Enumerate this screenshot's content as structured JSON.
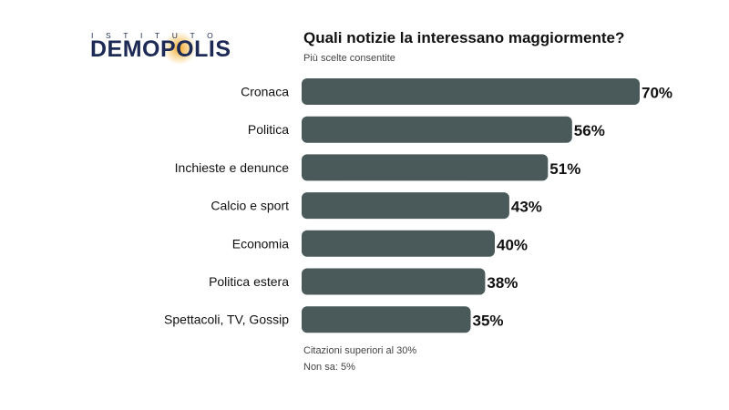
{
  "logo": {
    "top": "ISTITUTO",
    "main": "DEMOPOLIS"
  },
  "header": {
    "title": "Quali notizie la interessano maggiormente?",
    "subtitle": "Più scelte consentite"
  },
  "chart_data": {
    "type": "bar",
    "orientation": "horizontal",
    "categories": [
      "Cronaca",
      "Politica",
      "Inchieste e denunce",
      "Calcio e sport",
      "Economia",
      "Politica estera",
      "Spettacoli, TV, Gossip"
    ],
    "values": [
      70,
      56,
      51,
      43,
      40,
      38,
      35
    ],
    "value_labels": [
      "70%",
      "56%",
      "51%",
      "43%",
      "40%",
      "38%",
      "35%"
    ],
    "unit": "%",
    "title": "Quali notizie la interessano maggiormente?",
    "subtitle": "Più scelte consentite",
    "xlim": [
      0,
      70
    ],
    "grid": false,
    "legend": "none",
    "bar_color": "#4a5a5a"
  },
  "notes": {
    "line1": "Citazioni superiori al 30%",
    "line2": "Non sa: 5%"
  }
}
